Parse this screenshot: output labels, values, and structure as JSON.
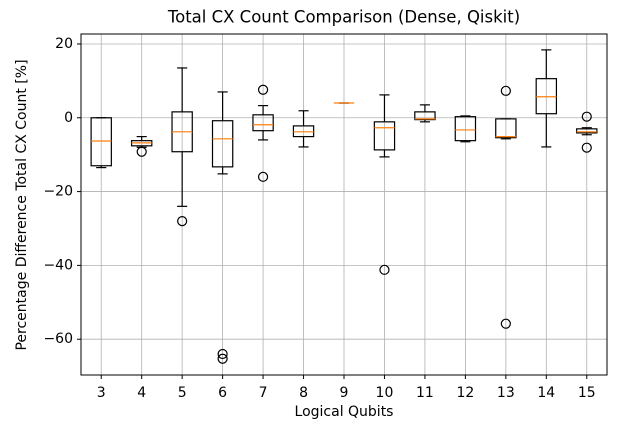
{
  "chart_data": {
    "type": "box",
    "title": "Total CX Count Comparison (Dense, Qiskit)",
    "xlabel": "Logical Qubits",
    "ylabel": "Percentage Difference Total CX Count  [%]",
    "categories": [
      "3",
      "4",
      "5",
      "6",
      "7",
      "8",
      "9",
      "10",
      "11",
      "12",
      "13",
      "14",
      "15"
    ],
    "boxes": [
      {
        "whislo": -13.5,
        "q1": -13,
        "med": -6.3,
        "q3": 0,
        "whishi": 0,
        "fliers": []
      },
      {
        "whislo": -8,
        "q1": -7.6,
        "med": -6.8,
        "q3": -6.2,
        "whishi": -5.1,
        "fliers": [
          -9.2
        ]
      },
      {
        "whislo": -24,
        "q1": -9.2,
        "med": -3.8,
        "q3": 1.6,
        "whishi": 13.5,
        "fliers": [
          -28
        ]
      },
      {
        "whislo": -15.2,
        "q1": -13.3,
        "med": -5.7,
        "q3": -0.8,
        "whishi": 7,
        "fliers": [
          -64,
          -65.3
        ]
      },
      {
        "whislo": -6,
        "q1": -3.5,
        "med": -1.9,
        "q3": 0.8,
        "whishi": 3.3,
        "fliers": [
          7.6,
          -16
        ]
      },
      {
        "whislo": -7.9,
        "q1": -5.1,
        "med": -3.8,
        "q3": -2.2,
        "whishi": 1.9,
        "fliers": []
      },
      {
        "whislo": 4,
        "q1": 4,
        "med": 4,
        "q3": 4,
        "whishi": 4,
        "fliers": []
      },
      {
        "whislo": -10.6,
        "q1": -8.7,
        "med": -2.7,
        "q3": -1.1,
        "whishi": 6.2,
        "fliers": [
          -41.2
        ]
      },
      {
        "whislo": -1.1,
        "q1": -0.5,
        "med": -0.3,
        "q3": 1.6,
        "whishi": 3.5,
        "fliers": []
      },
      {
        "whislo": -6.5,
        "q1": -6.2,
        "med": -3.3,
        "q3": 0.3,
        "whishi": 0.5,
        "fliers": []
      },
      {
        "whislo": -5.7,
        "q1": -5.4,
        "med": -5.1,
        "q3": -0.3,
        "whishi": -0.3,
        "fliers": [
          7.3,
          -55.8
        ]
      },
      {
        "whislo": -7.9,
        "q1": 1.1,
        "med": 5.7,
        "q3": 10.6,
        "whishi": 18.4,
        "fliers": []
      },
      {
        "whislo": -4.6,
        "q1": -4.1,
        "med": -3.8,
        "q3": -3,
        "whishi": -2.7,
        "fliers": [
          0.3,
          -8.1
        ]
      }
    ],
    "box_color": "#000000",
    "median_color": "#ff7f0e",
    "ylim": [
      -69.7,
      22.7
    ],
    "yticks": [
      {
        "value": -60,
        "label": "−60"
      },
      {
        "value": -40,
        "label": "−40"
      },
      {
        "value": -20,
        "label": "−20"
      },
      0,
      20
    ],
    "grid": true
  }
}
